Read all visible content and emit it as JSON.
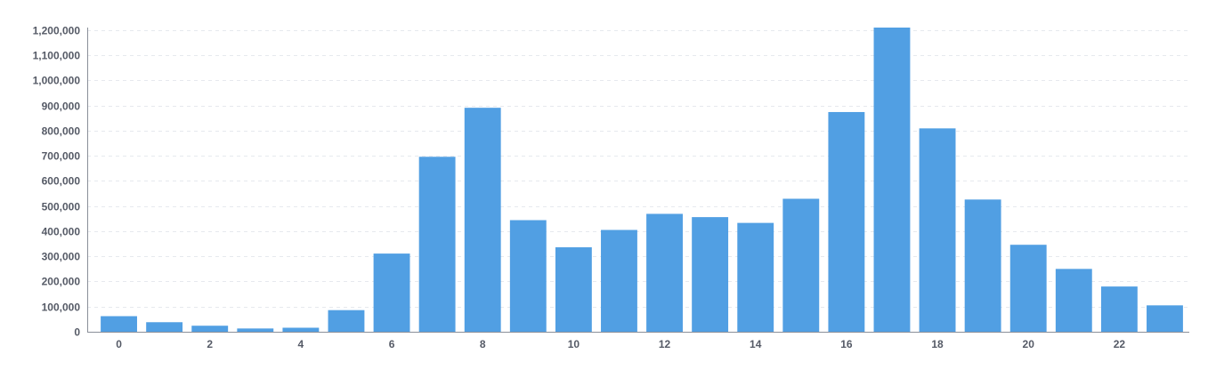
{
  "chart_data": {
    "type": "bar",
    "title": "",
    "xlabel": "",
    "ylabel": "",
    "categories": [
      0,
      1,
      2,
      3,
      4,
      5,
      6,
      7,
      8,
      9,
      10,
      11,
      12,
      13,
      14,
      15,
      16,
      17,
      18,
      19,
      20,
      21,
      22,
      23
    ],
    "x_tick_labels": [
      "0",
      "2",
      "4",
      "6",
      "8",
      "10",
      "12",
      "14",
      "16",
      "18",
      "20",
      "22"
    ],
    "y_tick_labels": [
      "0",
      "100,000",
      "200,000",
      "300,000",
      "400,000",
      "500,000",
      "600,000",
      "700,000",
      "800,000",
      "900,000",
      "1,000,000",
      "1,100,000",
      "1,200,000"
    ],
    "y_ticks": [
      0,
      100000,
      200000,
      300000,
      400000,
      500000,
      600000,
      700000,
      800000,
      900000,
      1000000,
      1100000,
      1200000
    ],
    "series": [
      {
        "values": [
          62000,
          38000,
          24000,
          13000,
          16000,
          86000,
          311000,
          696000,
          891000,
          444000,
          336000,
          405000,
          469000,
          456000,
          433000,
          529000,
          874000,
          1210000,
          809000,
          526000,
          346000,
          250000,
          180000,
          105000
        ],
        "color": "#519fe3"
      }
    ],
    "ylim": [
      0,
      1210000
    ],
    "grid": true,
    "grid_style": "dashed",
    "legend": "none"
  }
}
